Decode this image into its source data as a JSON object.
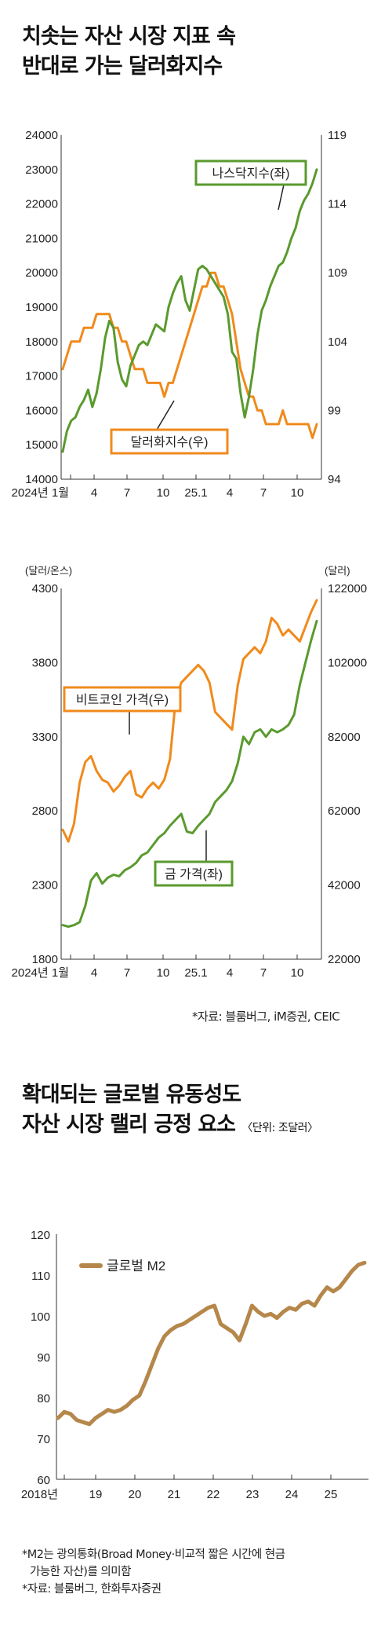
{
  "section1": {
    "title_line1": "치솟는 자산 시장 지표 속",
    "title_line2": "반대로 가는 달러화지수",
    "source": "*자료: 블룸버그, iM증권, CEIC"
  },
  "section2": {
    "title_line1": "확대되는 글로벌 유동성도",
    "title_line2": "자산 시장 랠리 긍정 요소",
    "unit_note": "〈단위: 조달러〉",
    "note_line1": "*M2는 광의통화(Broad Money·비교적 짧은 시간에 현금",
    "note_line2": "가능한 자산)를 의미함",
    "source": "*자료: 블룸버그, 한화투자증권"
  },
  "colors": {
    "green": "#5a9a2e",
    "orange": "#f08a1c",
    "brown": "#b5874a",
    "axis": "#333333"
  },
  "chart_data": [
    {
      "type": "line",
      "x_ticks": [
        "2024년 1월",
        "4",
        "7",
        "10",
        "25.1",
        "4",
        "7",
        "10"
      ],
      "left_axis": {
        "ticks": [
          "24000",
          "23000",
          "22000",
          "21000",
          "20000",
          "19000",
          "18000",
          "17000",
          "16000",
          "15000",
          "14000"
        ],
        "ylim": [
          14000,
          24000
        ]
      },
      "right_axis": {
        "ticks": [
          "119",
          "114",
          "109",
          "104",
          "99",
          "94"
        ],
        "ylim": [
          94,
          119
        ]
      },
      "series": [
        {
          "name": "나스닥지수(좌)",
          "axis": "left",
          "color": "green",
          "values": [
            14800,
            15400,
            15700,
            15800,
            16100,
            16300,
            16600,
            16100,
            16500,
            17200,
            18100,
            18600,
            18400,
            17400,
            16900,
            16700,
            17300,
            17600,
            17900,
            18000,
            17900,
            18200,
            18500,
            18400,
            18300,
            19000,
            19400,
            19700,
            19900,
            19200,
            18900,
            19500,
            20100,
            20200,
            20100,
            19900,
            19700,
            19500,
            19300,
            18800,
            17700,
            17500,
            16500,
            15800,
            16400,
            17200,
            18200,
            18900,
            19200,
            19600,
            19900,
            20200,
            20300,
            20600,
            21000,
            21300,
            21800,
            22100,
            22300,
            22600,
            23000
          ]
        },
        {
          "name": "달러화지수(우)",
          "axis": "right",
          "color": "orange",
          "values": [
            102,
            103,
            104,
            104,
            104,
            105,
            105,
            105,
            106,
            106,
            106,
            106,
            105,
            105,
            104,
            104,
            103,
            102,
            102,
            102,
            101,
            101,
            101,
            101,
            100,
            101,
            101,
            102,
            103,
            104,
            105,
            106,
            107,
            108,
            108,
            109,
            109,
            108,
            108,
            107,
            106,
            104,
            102,
            101,
            100,
            100,
            99,
            99,
            98,
            98,
            98,
            98,
            99,
            98,
            98,
            98,
            98,
            98,
            98,
            97,
            98
          ]
        },
        {
          "name": "",
          "axis": "left",
          "color": "none",
          "values": []
        }
      ],
      "labels": {
        "green": "나스닥지수(좌)",
        "orange": "달러화지수(우)"
      }
    },
    {
      "type": "line",
      "x_ticks": [
        "2024년 1월",
        "4",
        "7",
        "10",
        "25.1",
        "4",
        "7",
        "10"
      ],
      "left_axis": {
        "unit": "(달러/온스)",
        "ticks": [
          "4300",
          "3800",
          "3300",
          "2800",
          "2300",
          "1800"
        ],
        "ylim": [
          1800,
          4300
        ]
      },
      "right_axis": {
        "unit": "(달러)",
        "ticks": [
          "122000",
          "102000",
          "82000",
          "62000",
          "42000",
          "22000"
        ],
        "ylim": [
          2000,
          128000
        ]
      },
      "series": [
        {
          "name": "금 가격(좌)",
          "axis": "left",
          "color": "green",
          "values": [
            2030,
            2020,
            2030,
            2050,
            2160,
            2330,
            2380,
            2310,
            2350,
            2370,
            2360,
            2400,
            2420,
            2450,
            2500,
            2520,
            2570,
            2620,
            2650,
            2700,
            2740,
            2780,
            2660,
            2650,
            2700,
            2740,
            2780,
            2860,
            2900,
            2940,
            3000,
            3120,
            3300,
            3250,
            3330,
            3350,
            3300,
            3350,
            3330,
            3350,
            3380,
            3450,
            3650,
            3800,
            3950,
            4080
          ]
        },
        {
          "name": "비트코인 가격(우)",
          "axis": "right",
          "color": "orange",
          "values": [
            46000,
            42000,
            48000,
            62000,
            69000,
            71000,
            66000,
            63000,
            62000,
            59000,
            61000,
            64000,
            66000,
            58000,
            57000,
            60000,
            62000,
            60000,
            63000,
            70000,
            90000,
            96000,
            98000,
            100000,
            102000,
            100000,
            96000,
            86000,
            84000,
            82000,
            80000,
            95000,
            104000,
            106000,
            108000,
            106000,
            110000,
            118000,
            116000,
            112000,
            114000,
            112000,
            110000,
            115000,
            120000,
            124000
          ]
        }
      ],
      "labels": {
        "green": "금 가격(좌)",
        "orange": "비트코인 가격(우)"
      }
    },
    {
      "type": "line",
      "x_ticks": [
        "2018년",
        "19",
        "20",
        "21",
        "22",
        "23",
        "24",
        "25"
      ],
      "y_ticks": [
        "120",
        "110",
        "100",
        "90",
        "80",
        "70",
        "60"
      ],
      "ylim": [
        60,
        120
      ],
      "legend": "글로벌 M2",
      "series": [
        {
          "name": "글로벌 M2",
          "color": "brown",
          "values": [
            75,
            76.5,
            76,
            74.5,
            74,
            73.5,
            75,
            76,
            77,
            76.5,
            77,
            78,
            79.5,
            80.5,
            84,
            88,
            92,
            95,
            96.5,
            97.5,
            98,
            99,
            100,
            101,
            102,
            102.5,
            98,
            97,
            96,
            94,
            98,
            102.5,
            101,
            100,
            100.5,
            99.5,
            101,
            102,
            101.5,
            103,
            103.5,
            102.5,
            105,
            107,
            106,
            107,
            109,
            111,
            112.5,
            113
          ]
        }
      ]
    }
  ]
}
